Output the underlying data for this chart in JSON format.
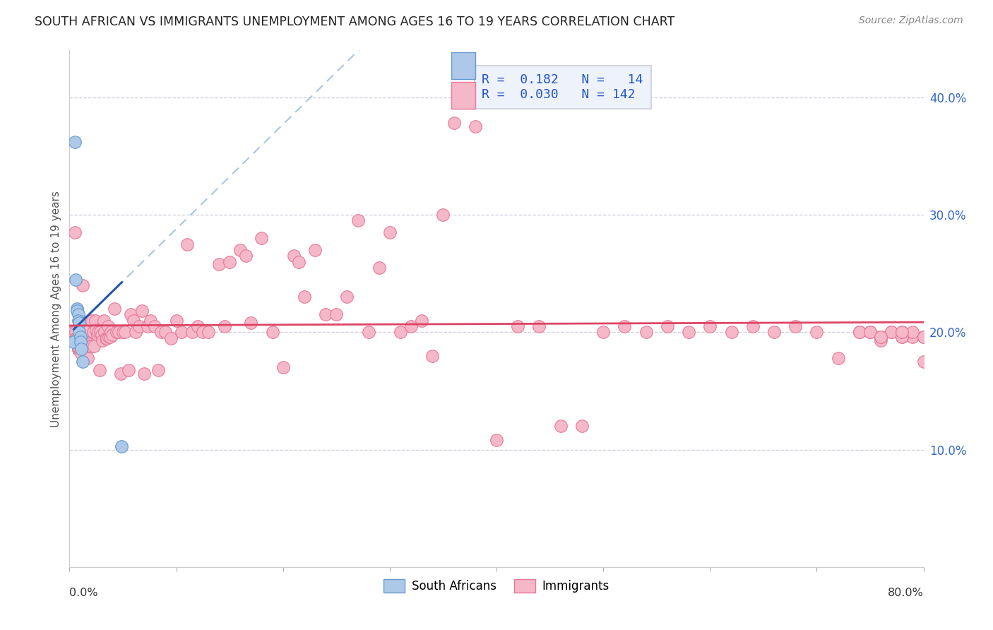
{
  "title": "SOUTH AFRICAN VS IMMIGRANTS UNEMPLOYMENT AMONG AGES 16 TO 19 YEARS CORRELATION CHART",
  "source": "Source: ZipAtlas.com",
  "ylabel": "Unemployment Among Ages 16 to 19 years",
  "xlim": [
    0.0,
    0.8
  ],
  "ylim": [
    0.0,
    0.44
  ],
  "plot_ylim": [
    0.0,
    0.44
  ],
  "ytick_vals": [
    0.1,
    0.2,
    0.3,
    0.4
  ],
  "ytick_labels": [
    "10.0%",
    "20.0%",
    "30.0%",
    "40.0%"
  ],
  "sa_color": "#adc8e8",
  "sa_edge_color": "#6699cc",
  "imm_color": "#f5b8c8",
  "imm_edge_color": "#e87898",
  "trend_sa_dashed_color": "#99bbdd",
  "trend_sa_solid_color": "#2255aa",
  "trend_imm_color": "#dd4466",
  "background_color": "#ffffff",
  "grid_color": "#ccccdd",
  "legend_box_color": "#eef2fa",
  "legend_border_color": "#ccccdd",
  "r_value_color": "#2255cc",
  "n_value_color": "#2255cc",
  "sa_x": [
    0.004,
    0.005,
    0.006,
    0.007,
    0.007,
    0.008,
    0.008,
    0.009,
    0.009,
    0.01,
    0.01,
    0.011,
    0.012,
    0.049
  ],
  "sa_y": [
    0.192,
    0.362,
    0.245,
    0.22,
    0.218,
    0.215,
    0.21,
    0.208,
    0.2,
    0.196,
    0.192,
    0.186,
    0.175,
    0.103
  ],
  "imm_x": [
    0.003,
    0.004,
    0.005,
    0.005,
    0.006,
    0.006,
    0.007,
    0.007,
    0.008,
    0.008,
    0.009,
    0.009,
    0.01,
    0.011,
    0.012,
    0.013,
    0.014,
    0.015,
    0.016,
    0.017,
    0.018,
    0.019,
    0.02,
    0.021,
    0.022,
    0.023,
    0.024,
    0.025,
    0.026,
    0.027,
    0.028,
    0.029,
    0.03,
    0.031,
    0.032,
    0.033,
    0.034,
    0.035,
    0.036,
    0.037,
    0.038,
    0.039,
    0.04,
    0.042,
    0.044,
    0.046,
    0.048,
    0.05,
    0.052,
    0.055,
    0.057,
    0.06,
    0.062,
    0.065,
    0.068,
    0.07,
    0.073,
    0.076,
    0.08,
    0.083,
    0.086,
    0.09,
    0.095,
    0.1,
    0.105,
    0.11,
    0.115,
    0.12,
    0.125,
    0.13,
    0.14,
    0.145,
    0.15,
    0.16,
    0.165,
    0.17,
    0.18,
    0.19,
    0.2,
    0.21,
    0.215,
    0.22,
    0.23,
    0.24,
    0.25,
    0.26,
    0.27,
    0.28,
    0.29,
    0.3,
    0.31,
    0.32,
    0.33,
    0.34,
    0.35,
    0.36,
    0.38,
    0.4,
    0.42,
    0.44,
    0.46,
    0.48,
    0.5,
    0.52,
    0.54,
    0.56,
    0.58,
    0.6,
    0.62,
    0.64,
    0.66,
    0.68,
    0.7,
    0.72,
    0.74,
    0.76,
    0.77,
    0.78,
    0.79,
    0.8,
    0.74,
    0.75,
    0.76,
    0.77,
    0.78,
    0.79,
    0.8,
    0.75,
    0.76,
    0.77,
    0.78,
    0.74,
    0.76,
    0.78,
    0.8,
    0.75,
    0.76,
    0.78,
    0.8
  ],
  "imm_y": [
    0.2,
    0.2,
    0.285,
    0.195,
    0.2,
    0.195,
    0.195,
    0.19,
    0.186,
    0.185,
    0.195,
    0.186,
    0.184,
    0.182,
    0.24,
    0.195,
    0.195,
    0.192,
    0.202,
    0.178,
    0.19,
    0.188,
    0.188,
    0.21,
    0.2,
    0.188,
    0.21,
    0.202,
    0.198,
    0.2,
    0.168,
    0.2,
    0.198,
    0.193,
    0.21,
    0.2,
    0.195,
    0.195,
    0.205,
    0.196,
    0.196,
    0.2,
    0.198,
    0.22,
    0.2,
    0.2,
    0.165,
    0.2,
    0.2,
    0.168,
    0.215,
    0.21,
    0.2,
    0.205,
    0.218,
    0.165,
    0.205,
    0.21,
    0.205,
    0.168,
    0.2,
    0.2,
    0.195,
    0.21,
    0.2,
    0.275,
    0.2,
    0.205,
    0.2,
    0.2,
    0.258,
    0.205,
    0.26,
    0.27,
    0.265,
    0.208,
    0.28,
    0.2,
    0.17,
    0.265,
    0.26,
    0.23,
    0.27,
    0.215,
    0.215,
    0.23,
    0.295,
    0.2,
    0.255,
    0.285,
    0.2,
    0.205,
    0.21,
    0.18,
    0.3,
    0.378,
    0.375,
    0.108,
    0.205,
    0.205,
    0.12,
    0.12,
    0.2,
    0.205,
    0.2,
    0.205,
    0.2,
    0.205,
    0.2,
    0.205,
    0.2,
    0.205,
    0.2,
    0.178,
    0.2,
    0.196,
    0.2,
    0.2,
    0.196,
    0.175,
    0.2,
    0.2,
    0.193,
    0.2,
    0.196,
    0.2,
    0.196,
    0.2,
    0.196,
    0.2,
    0.196,
    0.2,
    0.196,
    0.2,
    0.196,
    0.2,
    0.196,
    0.2,
    0.196
  ]
}
